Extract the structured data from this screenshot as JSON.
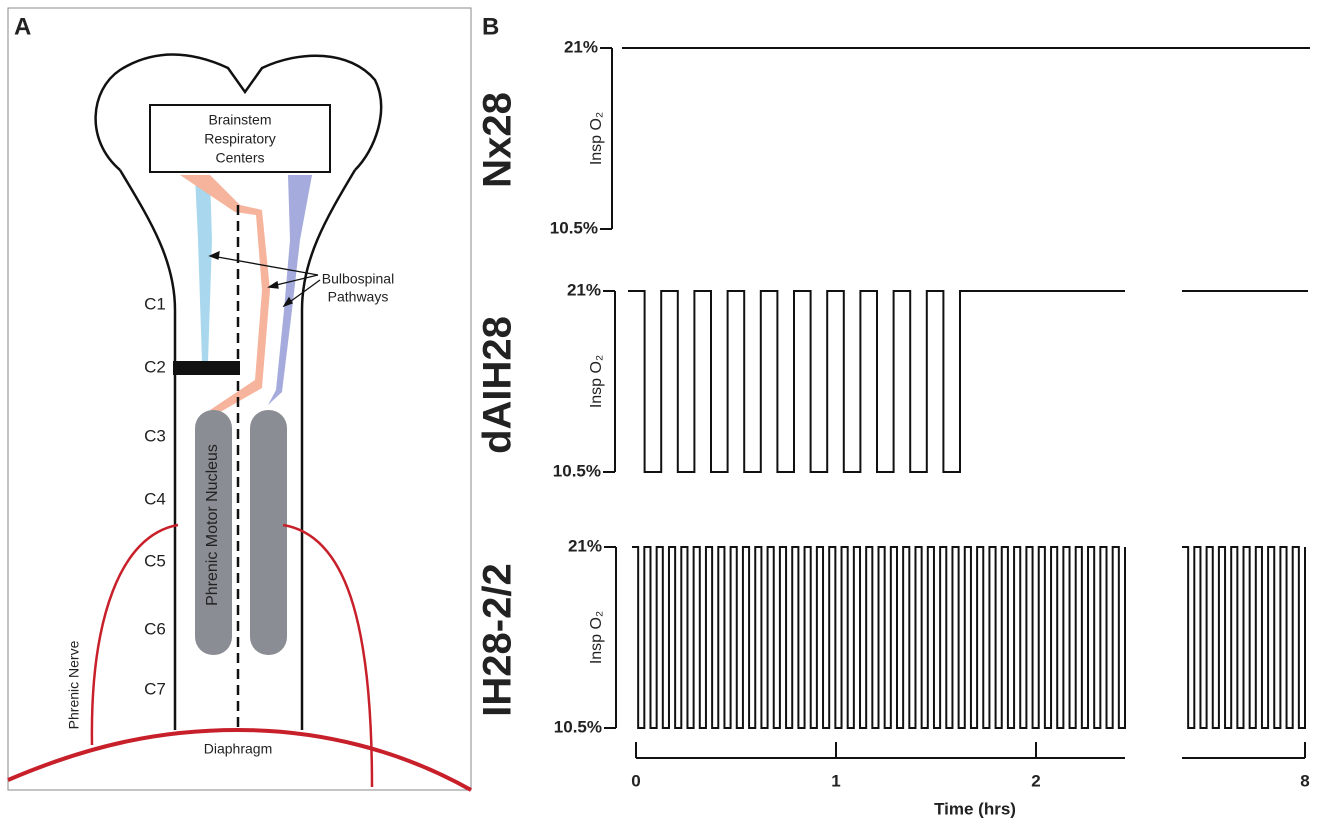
{
  "panel_a": {
    "label": "A",
    "box_label": [
      "Brainstem",
      "Respiratory",
      "Centers"
    ],
    "pathways_label": [
      "Bulbospinal",
      "Pathways"
    ],
    "segments": [
      "C1",
      "C2",
      "C3",
      "C4",
      "C5",
      "C6",
      "C7"
    ],
    "nucleus_label": "Phrenic Motor Nucleus",
    "nerve_label": "Phrenic Nerve",
    "diaphragm_label": "Diaphragm"
  },
  "panel_b": {
    "label": "B",
    "rows": [
      "Nx28",
      "dAIH28",
      "IH28-2/2"
    ],
    "axis_label": "Insp O₂",
    "ylim": [
      10.5,
      21
    ],
    "yticks": [
      {
        "value": 21,
        "label": "21%"
      },
      {
        "value": 10.5,
        "label": "10.5%"
      }
    ],
    "xticks": [
      0,
      1,
      2,
      8
    ],
    "xlabel": "Time (hrs)"
  }
}
